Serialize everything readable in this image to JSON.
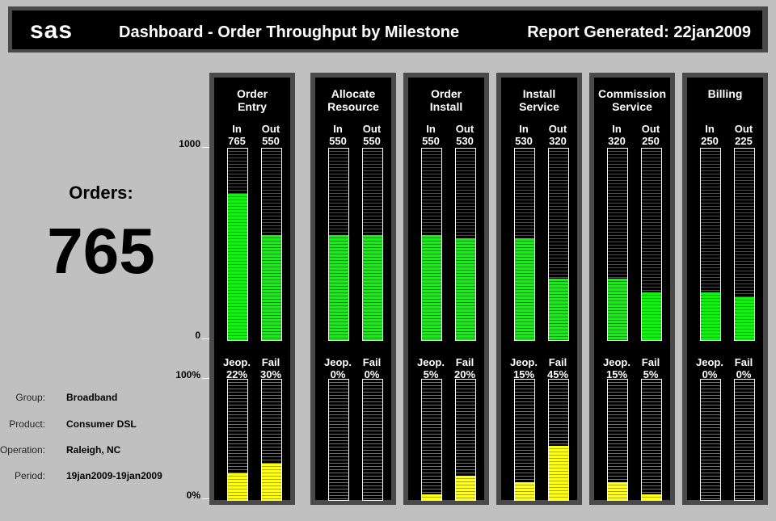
{
  "header": {
    "logo": "sas",
    "title": "Dashboard - Order Throughput by Milestone",
    "report": "Report Generated: 22jan2009"
  },
  "summary": {
    "orders_label": "Orders:",
    "orders_value": "765"
  },
  "info": [
    {
      "key": "Group:",
      "value": "Broadband"
    },
    {
      "key": "Product:",
      "value": "Consumer DSL"
    },
    {
      "key": "Operation:",
      "value": "Raleigh, NC"
    },
    {
      "key": "Period:",
      "value": "19jan2009-19jan2009"
    }
  ],
  "axis": {
    "top_max_label": "1000",
    "top_min_label": "0",
    "bottom_max_label": "100%",
    "bottom_min_label": "0%"
  },
  "colors": {
    "throughput_fill": "#14f014",
    "risk_fill": "#ffff14",
    "panel_frame": "#4a4a4a"
  },
  "chart_data": [
    {
      "type": "bar",
      "title": "",
      "categories": [
        "Order Entry",
        "Allocate Resource",
        "Order Install",
        "Install Service",
        "Commission Service",
        "Billing"
      ],
      "series": [
        {
          "name": "In",
          "values": [
            765,
            550,
            550,
            530,
            320,
            250
          ]
        },
        {
          "name": "Out",
          "values": [
            550,
            550,
            530,
            320,
            250,
            225
          ]
        }
      ],
      "ylim": [
        0,
        1000
      ]
    },
    {
      "type": "bar",
      "title": "",
      "categories": [
        "Order Entry",
        "Allocate Resource",
        "Order Install",
        "Install Service",
        "Commission Service",
        "Billing"
      ],
      "series": [
        {
          "name": "Jeop.",
          "values": [
            22,
            0,
            5,
            15,
            15,
            0
          ]
        },
        {
          "name": "Fail",
          "values": [
            30,
            0,
            20,
            45,
            5,
            0
          ]
        }
      ],
      "ylim": [
        0,
        100
      ]
    }
  ],
  "milestones": [
    {
      "line1": "Order",
      "line2": "Entry",
      "in": "765",
      "out": "550",
      "jeop": "22%",
      "fail": "30%"
    },
    {
      "line1": "Allocate",
      "line2": "Resource",
      "in": "550",
      "out": "550",
      "jeop": "0%",
      "fail": "0%"
    },
    {
      "line1": "Order",
      "line2": "Install",
      "in": "550",
      "out": "530",
      "jeop": "5%",
      "fail": "20%"
    },
    {
      "line1": "Install",
      "line2": "Service",
      "in": "530",
      "out": "320",
      "jeop": "15%",
      "fail": "45%"
    },
    {
      "line1": "Commission",
      "line2": "Service",
      "in": "320",
      "out": "250",
      "jeop": "15%",
      "fail": "5%"
    },
    {
      "line1": "Billing",
      "line2": "",
      "in": "250",
      "out": "225",
      "jeop": "0%",
      "fail": "0%"
    }
  ],
  "labels": {
    "in": "In",
    "out": "Out",
    "jeop": "Jeop.",
    "fail": "Fail"
  }
}
